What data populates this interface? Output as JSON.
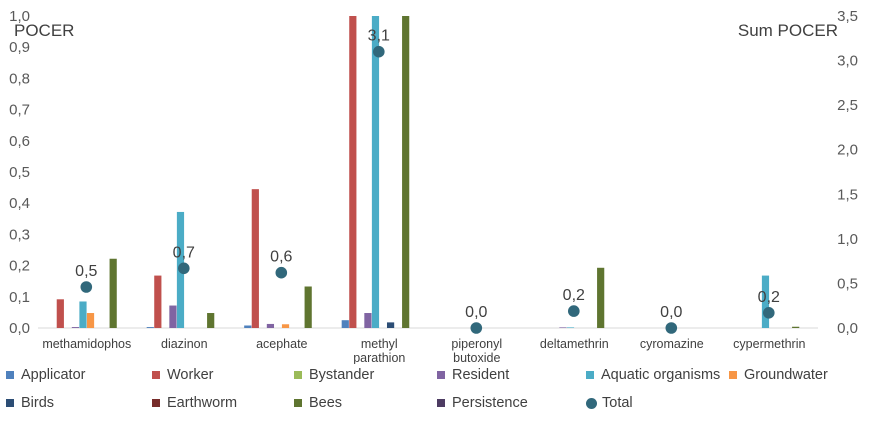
{
  "chart_data": {
    "type": "bar",
    "y_axis_title": "POCER",
    "y2_axis_title": "Sum POCER",
    "ylim": [
      0,
      1.0
    ],
    "y2lim": [
      0,
      3.5
    ],
    "yticks": [
      "0,0",
      "0,1",
      "0,2",
      "0,3",
      "0,4",
      "0,5",
      "0,6",
      "0,7",
      "0,8",
      "0,9",
      "1,0"
    ],
    "y2ticks": [
      "0,0",
      "0,5",
      "1,0",
      "1,5",
      "2,0",
      "2,5",
      "3,0",
      "3,5"
    ],
    "categories": [
      [
        "methamidophos"
      ],
      [
        "diazinon"
      ],
      [
        "acephate"
      ],
      [
        "methyl",
        "parathion"
      ],
      [
        "piperonyl",
        "butoxide"
      ],
      [
        "deltamethrin"
      ],
      [
        "cyromazine"
      ],
      [
        "cypermethrin"
      ]
    ],
    "series": [
      {
        "name": "Applicator",
        "color": "#4F81BD",
        "values": [
          0.0,
          0.003,
          0.008,
          0.025,
          0.0,
          0.0,
          0.0,
          0.0
        ]
      },
      {
        "name": "Worker",
        "color": "#C0504D",
        "values": [
          0.092,
          0.168,
          0.445,
          1.0,
          0.0,
          0.0,
          0.0,
          0.0
        ]
      },
      {
        "name": "Bystander",
        "color": "#9BBB59",
        "values": [
          0.0,
          0.0,
          0.0,
          0.0,
          0.0,
          0.0,
          0.0,
          0.0
        ]
      },
      {
        "name": "Resident",
        "color": "#8064A2",
        "values": [
          0.003,
          0.072,
          0.013,
          0.048,
          0.0,
          0.002,
          0.0,
          0.0
        ]
      },
      {
        "name": "Aquatic organisms",
        "color": "#4BACC6",
        "values": [
          0.085,
          0.372,
          0.0,
          1.0,
          0.0,
          0.002,
          0.0,
          0.168
        ]
      },
      {
        "name": "Groundwater",
        "color": "#F79646",
        "values": [
          0.048,
          0.0,
          0.012,
          0.0,
          0.0,
          0.0,
          0.0,
          0.0
        ]
      },
      {
        "name": "Birds",
        "color": "#2C4D75",
        "values": [
          0.0,
          0.0,
          0.0,
          0.018,
          0.0,
          0.0,
          0.0,
          0.0
        ]
      },
      {
        "name": "Earthworm",
        "color": "#772C2A",
        "values": [
          0.0,
          0.0,
          0.0,
          0.0,
          0.0,
          0.0,
          0.0,
          0.0
        ]
      },
      {
        "name": "Bees",
        "color": "#5F7530",
        "values": [
          0.222,
          0.048,
          0.133,
          1.0,
          0.0,
          0.193,
          0.0,
          0.004
        ]
      },
      {
        "name": "Persistence",
        "color": "#4D3B62",
        "values": [
          0.0,
          0.0,
          0.0,
          0.0,
          0.0,
          0.0,
          0.0,
          0.0
        ]
      }
    ],
    "total": {
      "name": "Total",
      "color": "#31687B",
      "values": [
        0.46,
        0.67,
        0.62,
        3.1,
        0.0,
        0.19,
        0.0,
        0.17
      ],
      "labels": [
        "0,5",
        "0,7",
        "0,6",
        "3,1",
        "0,0",
        "0,2",
        "0,0",
        "0,2"
      ]
    }
  }
}
